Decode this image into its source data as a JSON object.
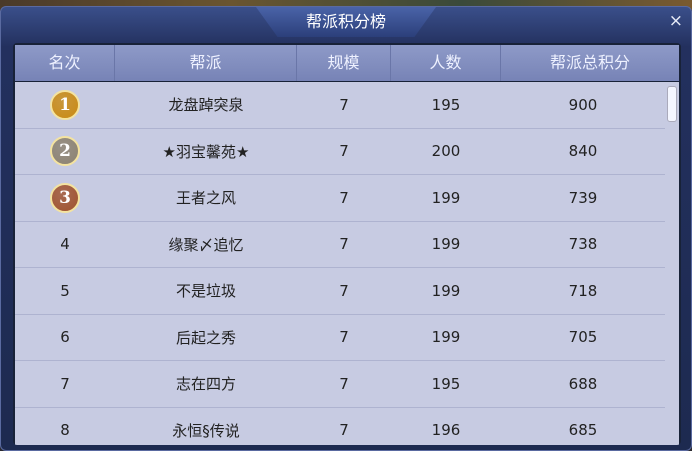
{
  "title": "帮派积分榜",
  "close_label": "×",
  "columns": [
    "名次",
    "帮派",
    "规模",
    "人数",
    "帮派总积分"
  ],
  "medal_colors": {
    "1": "#c98a12",
    "2": "#8c8270",
    "3": "#a0522d"
  },
  "rows": [
    {
      "rank": "1",
      "name": "龙盘踔突泉",
      "size": "7",
      "members": "195",
      "score": "900"
    },
    {
      "rank": "2",
      "name": "★羽宝馨苑★",
      "size": "7",
      "members": "200",
      "score": "840"
    },
    {
      "rank": "3",
      "name": "王者之风",
      "size": "7",
      "members": "199",
      "score": "739"
    },
    {
      "rank": "4",
      "name": "缘聚〆追忆",
      "size": "7",
      "members": "199",
      "score": "738"
    },
    {
      "rank": "5",
      "name": "不是垃圾",
      "size": "7",
      "members": "199",
      "score": "718"
    },
    {
      "rank": "6",
      "name": "后起之秀",
      "size": "7",
      "members": "199",
      "score": "705"
    },
    {
      "rank": "7",
      "name": "志在四方",
      "size": "7",
      "members": "195",
      "score": "688"
    },
    {
      "rank": "8",
      "name": "永恒§传说",
      "size": "7",
      "members": "196",
      "score": "685"
    }
  ]
}
